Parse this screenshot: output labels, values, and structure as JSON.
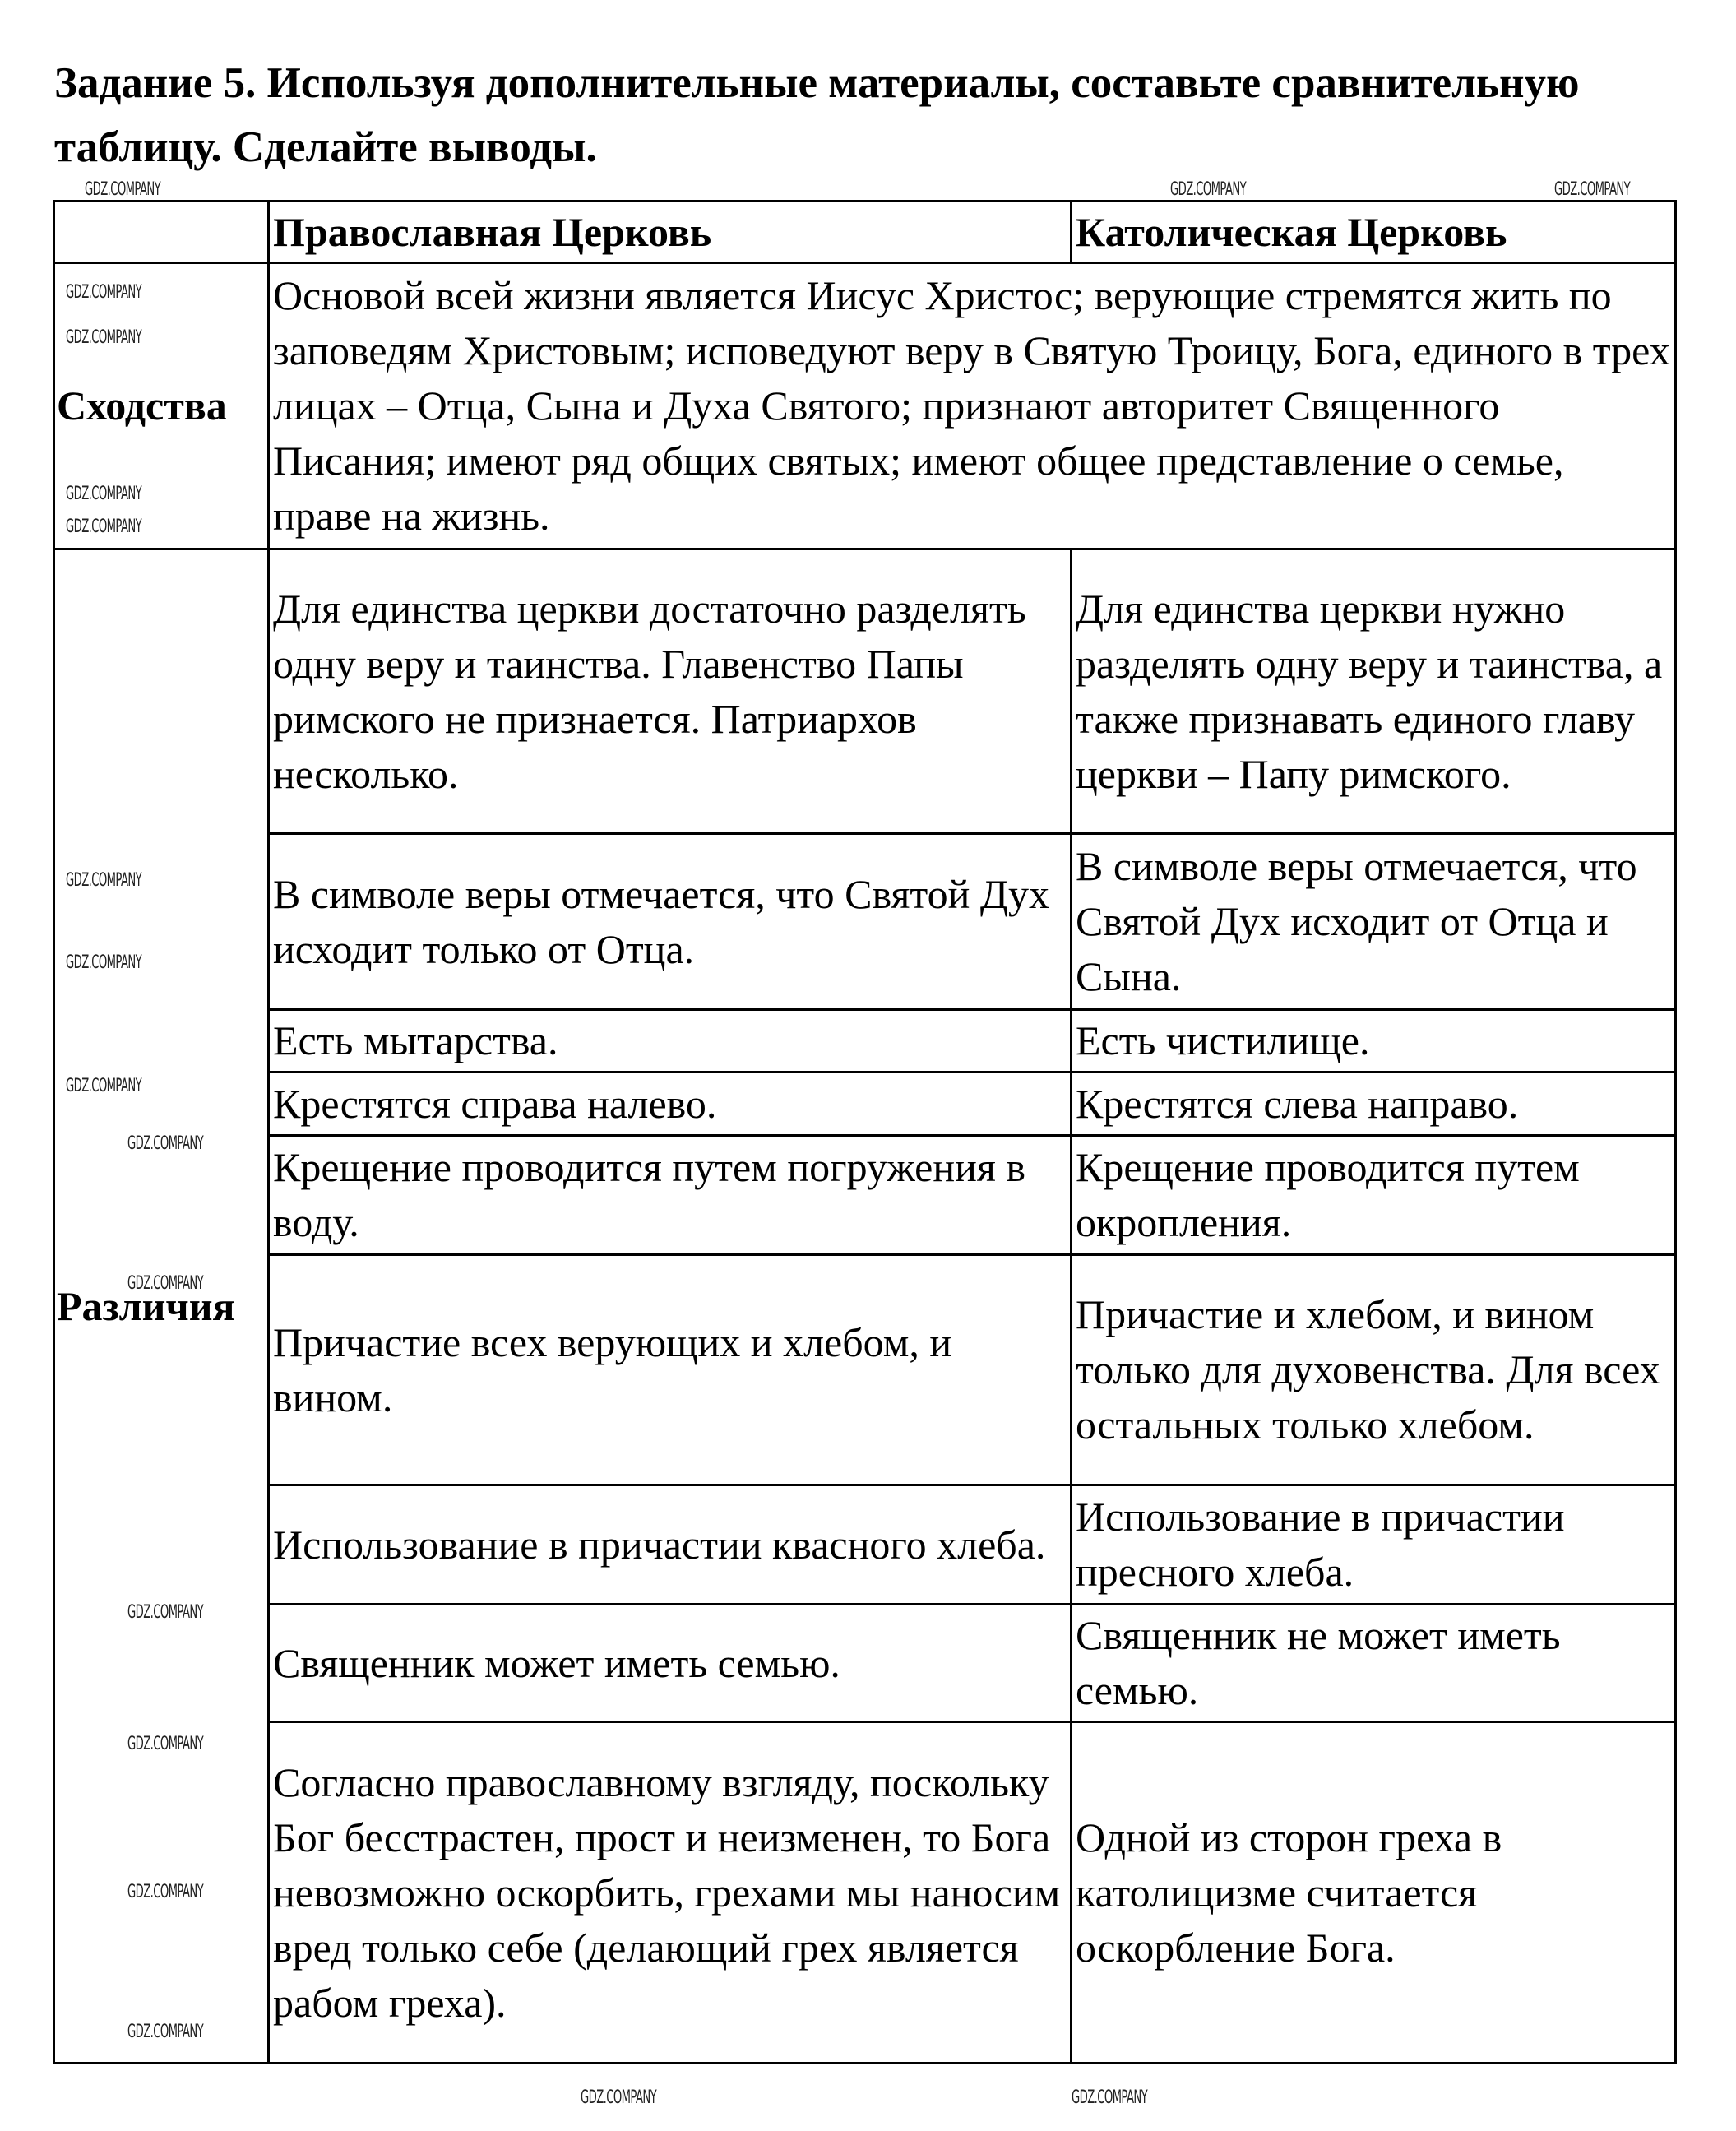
{
  "title": "Задание 5. Используя дополнительные материалы, составьте сравнительную таблицу. Сделайте выводы.",
  "watermark": "GDZ.COMPANY",
  "table": {
    "headers": [
      "",
      "Православная Церковь",
      "Католическая Церковь"
    ],
    "similarities_label": "Сходства",
    "similarities_text": "Основой всей жизни является Иисус Христос; верующие стремятся жить по заповедям Христовым; исповедуют веру в Святую Троицу, Бога, единого в трех лицах – Отца, Сына и Духа Святого; признают авторитет Священного Писания; имеют ряд общих святых; имеют общее представление о семье, праве на жизнь.",
    "differences_label": "Различия",
    "differences": [
      {
        "orthodox": "Для единства церкви достаточно разделять одну веру и таинства. Главенство Папы римского не признается. Патриархов несколько.",
        "catholic": "Для единства церкви нужно разделять одну веру и таинства, а также признавать единого главу церкви – Папу римского."
      },
      {
        "orthodox": "В символе веры отмечается, что Святой Дух исходит только от Отца.",
        "catholic": "В символе веры отмечается, что Святой Дух исходит от Отца и Сына."
      },
      {
        "orthodox": "Есть мытарства.",
        "catholic": "Есть чистилище."
      },
      {
        "orthodox": "Крестятся справа налево.",
        "catholic": "Крестятся слева направо."
      },
      {
        "orthodox": "Крещение проводится путем погружения в воду.",
        "catholic": "Крещение проводится путем окропления."
      },
      {
        "orthodox": "Причастие всех верующих и хлебом, и вином.",
        "catholic": "Причастие и хлебом, и вином только для духовенства. Для всех остальных только хлебом."
      },
      {
        "orthodox": "Использование в причастии квасного хлеба.",
        "catholic": "Использование в причастии пресного хлеба."
      },
      {
        "orthodox": "Священник может иметь семью.",
        "catholic": "Священник не может иметь семью."
      },
      {
        "orthodox": "Согласно православному взгляду, поскольку Бог бесстрастен, прост и неизменен, то Бога невозможно оскорбить, грехами мы наносим вред только себе (делающий грех является рабом греха).",
        "catholic": "Одной из сторон греха в католицизме считается оскорбление Бога."
      }
    ]
  }
}
